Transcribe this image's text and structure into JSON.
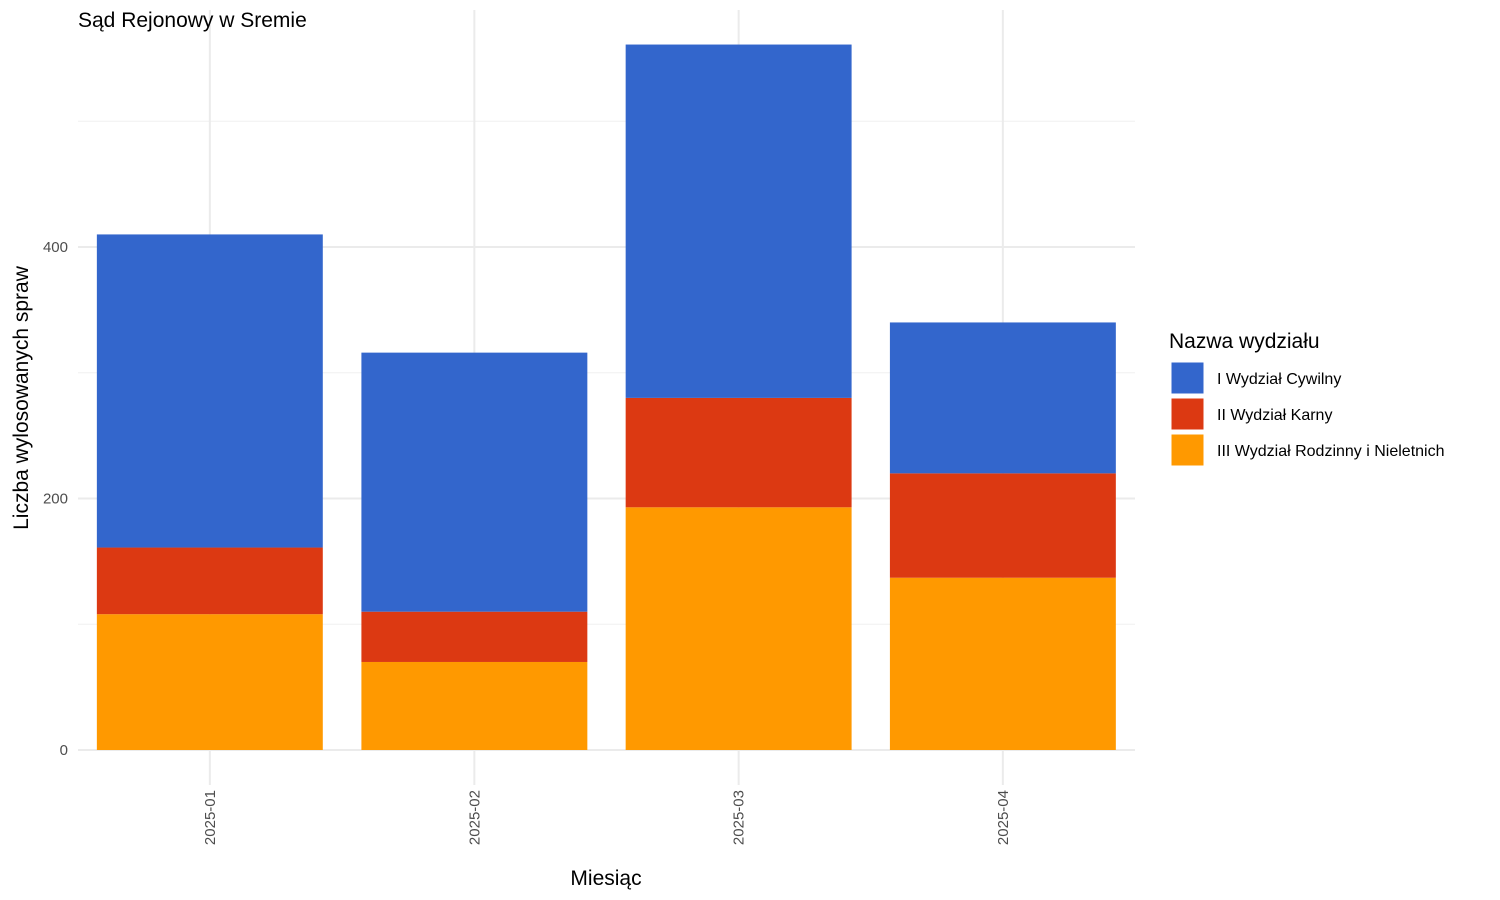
{
  "chart_data": {
    "type": "bar",
    "stacked": true,
    "title": "Sąd Rejonowy w Sremie",
    "xlabel": "Miesiąc",
    "ylabel": "Liczba wylosowanych spraw",
    "categories": [
      "2025-01",
      "2025-02",
      "2025-03",
      "2025-04"
    ],
    "ylim": [
      0,
      585
    ],
    "yticks": [
      0,
      200,
      400
    ],
    "grid": true,
    "legend": {
      "title": "Nazwa wydziału",
      "position": "right"
    },
    "series": [
      {
        "name": "III Wydział Rodzinny i Nieletnich",
        "color": "#FF9900",
        "values": [
          108,
          70,
          193,
          137
        ]
      },
      {
        "name": "II Wydział Karny",
        "color": "#DC3912",
        "values": [
          53,
          40,
          87,
          83
        ]
      },
      {
        "name": "I Wydział Cywilny",
        "color": "#3366CC",
        "values": [
          249,
          206,
          281,
          120
        ]
      }
    ],
    "legend_order": [
      "I Wydział Cywilny",
      "II Wydział Karny",
      "III Wydział Rodzinny i Nieletnich"
    ]
  }
}
